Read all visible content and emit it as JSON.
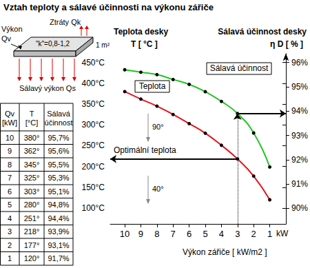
{
  "chart_data": {
    "type": "line",
    "title": "Vztah teploty a sálavé účinnosti na výkonu zářiče",
    "xlabel": "Výkon zářiče [ kW/m2 ]",
    "x_unit": "kW",
    "ylabel": [
      "Teplota desky",
      "T [ °C ]"
    ],
    "y2label": [
      "Sálavá účinnost desky",
      "η D [ % ]"
    ],
    "x": [
      10,
      9,
      8,
      7,
      6,
      5,
      4,
      3,
      2,
      1
    ],
    "series": [
      {
        "name": "Teplota",
        "color": "#e8141c",
        "marker": "circle",
        "values": [
          380,
          362,
          345,
          325,
          303,
          280,
          251,
          218,
          177,
          120
        ]
      },
      {
        "name": "Sálavá účinnost",
        "color": "#22c422",
        "marker": "circle",
        "axis": "y2",
        "values": [
          95.7,
          95.6,
          95.5,
          95.3,
          95.1,
          94.8,
          94.4,
          93.9,
          93.1,
          91.7
        ]
      }
    ],
    "xlim": [
      0,
      10.9
    ],
    "xticks": [
      1,
      2,
      3,
      4,
      5,
      6,
      7,
      8,
      9,
      10
    ],
    "ylim": [
      62,
      471
    ],
    "yticks": [
      {
        "value": 100,
        "label": "100°C"
      },
      {
        "value": 150,
        "label": "150°C"
      },
      {
        "value": 200,
        "label": "200°C"
      },
      {
        "value": 250,
        "label": "250°C"
      },
      {
        "value": 300,
        "label": "300°C"
      },
      {
        "value": 350,
        "label": "350°C"
      },
      {
        "value": 400,
        "label": "400°C"
      },
      {
        "value": 450,
        "label": "450°C"
      }
    ],
    "y2lim": [
      89.36,
      96.36
    ],
    "y2ticks": [
      {
        "value": 90,
        "label": "90%"
      },
      {
        "value": 91,
        "label": "91%"
      },
      {
        "value": 92,
        "label": "92%"
      },
      {
        "value": 93,
        "label": "93%"
      },
      {
        "value": 94,
        "label": "94%"
      },
      {
        "value": 95,
        "label": "95%"
      },
      {
        "value": 96,
        "label": "96%"
      }
    ],
    "grid": false,
    "annotations": [
      {
        "text": "Optimální teplota",
        "x": 3
      },
      {
        "text": "90°"
      },
      {
        "text": "40°"
      }
    ]
  },
  "diagram": {
    "losses": "Ztráty Qk",
    "input": [
      "Výkon",
      "Qv"
    ],
    "k": "\"k\"=0,8-1,2",
    "area": "1 m²",
    "radiant": "Sálavý výkon Qs"
  },
  "table": {
    "header": [
      "Qv [kW]",
      "T [°C]",
      "Sálavá účinnost"
    ],
    "rows": [
      [
        "10",
        "380°",
        "95,7%"
      ],
      [
        "9",
        "362°",
        "95,6%"
      ],
      [
        "8",
        "345°",
        "95,5%"
      ],
      [
        "7",
        "325°",
        "95,3%"
      ],
      [
        "6",
        "303°",
        "95,1%"
      ],
      [
        "5",
        "280°",
        "94,8%"
      ],
      [
        "4",
        "251°",
        "94,4%"
      ],
      [
        "3",
        "218°",
        "93,9%"
      ],
      [
        "2",
        "177°",
        "93,1%"
      ],
      [
        "1",
        "120°",
        "91,7%"
      ]
    ]
  }
}
